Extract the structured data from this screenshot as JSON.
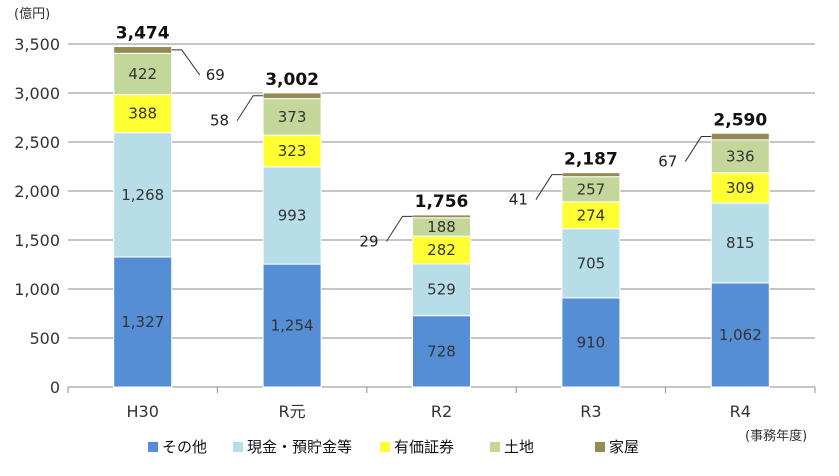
{
  "chart_data": {
    "type": "bar",
    "stacked": true,
    "unit_label": "(億円)",
    "x_unit_label": "(事務年度)",
    "categories": [
      "H30",
      "R元",
      "R2",
      "R3",
      "R4"
    ],
    "series": [
      {
        "name": "その他",
        "color": "#558ED5",
        "values": [
          1327,
          1254,
          728,
          910,
          1062
        ]
      },
      {
        "name": "現金・預貯金等",
        "color": "#B7DEE8",
        "values": [
          1268,
          993,
          529,
          705,
          815
        ]
      },
      {
        "name": "有価証券",
        "color": "#FFFF33",
        "values": [
          388,
          323,
          282,
          274,
          309
        ]
      },
      {
        "name": "土地",
        "color": "#C4D79B",
        "values": [
          422,
          373,
          188,
          257,
          336
        ]
      },
      {
        "name": "家屋",
        "color": "#948A54",
        "values": [
          69,
          58,
          29,
          41,
          67
        ]
      }
    ],
    "totals": [
      3474,
      3002,
      1756,
      2187,
      2590
    ],
    "value_labels": {
      "その他": [
        "1,327",
        "1,254",
        "728",
        "910",
        "1,062"
      ],
      "現金・預貯金等": [
        "1,268",
        "993",
        "529",
        "705",
        "815"
      ],
      "有価証券": [
        "388",
        "323",
        "282",
        "274",
        "309"
      ],
      "土地": [
        "422",
        "373",
        "188",
        "257",
        "336"
      ],
      "家屋": [
        "69",
        "58",
        "29",
        "41",
        "67"
      ]
    },
    "total_labels": [
      "3,474",
      "3,002",
      "1,756",
      "2,187",
      "2,590"
    ],
    "y_ticks": [
      "0",
      "500",
      "1,000",
      "1,500",
      "2,000",
      "2,500",
      "3,000",
      "3,500"
    ],
    "ylim": [
      0,
      3500
    ],
    "grid": true,
    "legend_position": "bottom"
  }
}
